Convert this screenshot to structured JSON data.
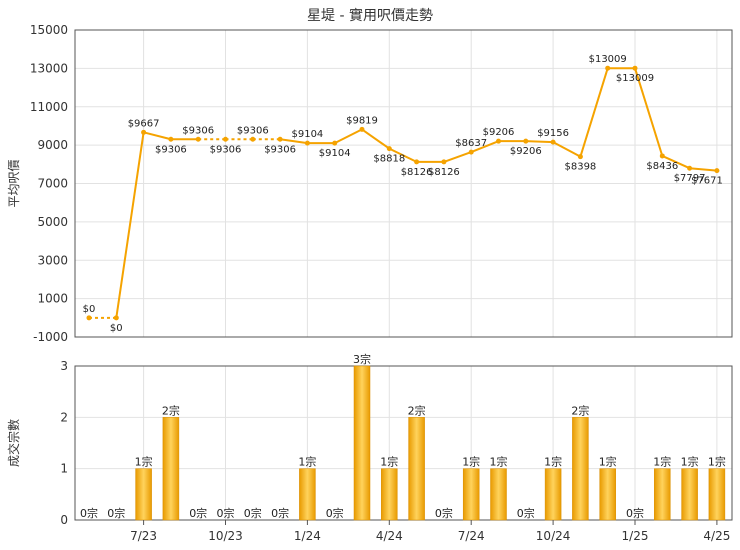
{
  "title": "星堤 - 實用呎價走勢",
  "colors": {
    "line": "#f5a300",
    "bar_dark": "#e89a00",
    "bar_light": "#ffd35c",
    "grid": "#e2e2e2"
  },
  "chart_data": [
    {
      "type": "line",
      "title": "星堤 - 實用呎價走勢",
      "ylabel": "平均呎價",
      "ylim": [
        -1000,
        15000
      ],
      "yticks": [
        -1000,
        1000,
        3000,
        5000,
        7000,
        9000,
        11000,
        13000,
        15000
      ],
      "x_ticks": [
        "7/23",
        "10/23",
        "1/24",
        "4/24",
        "7/24",
        "10/24",
        "1/25",
        "4/25"
      ],
      "grid": true,
      "series": [
        {
          "points": [
            {
              "y": 0,
              "label": "$0",
              "estimated": true
            },
            {
              "y": 0,
              "label": "$0",
              "estimated": true
            },
            {
              "y": 9667,
              "label": "$9667",
              "estimated": false
            },
            {
              "y": 9306,
              "label": "$9306",
              "estimated": false
            },
            {
              "y": 9306,
              "label": "$9306",
              "estimated": true
            },
            {
              "y": 9306,
              "label": "$9306",
              "estimated": true
            },
            {
              "y": 9306,
              "label": "$9306",
              "estimated": true
            },
            {
              "y": 9306,
              "label": "$9306",
              "estimated": true
            },
            {
              "y": 9104,
              "label": "$9104",
              "estimated": false
            },
            {
              "y": 9104,
              "label": "$9104",
              "estimated": true
            },
            {
              "y": 9819,
              "label": "$9819",
              "estimated": false
            },
            {
              "y": 8818,
              "label": "$8818",
              "estimated": false
            },
            {
              "y": 8126,
              "label": "$8126",
              "estimated": false
            },
            {
              "y": 8126,
              "label": "$8126",
              "estimated": true
            },
            {
              "y": 8637,
              "label": "$8637",
              "estimated": false
            },
            {
              "y": 9206,
              "label": "$9206",
              "estimated": false
            },
            {
              "y": 9206,
              "label": "$9206",
              "estimated": true
            },
            {
              "y": 9156,
              "label": "$9156",
              "estimated": false
            },
            {
              "y": 8398,
              "label": "$8398",
              "estimated": false
            },
            {
              "y": 13009,
              "label": "$13009",
              "estimated": false
            },
            {
              "y": 13009,
              "label": "$13009",
              "estimated": true
            },
            {
              "y": 8436,
              "label": "$8436",
              "estimated": false
            },
            {
              "y": 7797,
              "label": "$7797",
              "estimated": false
            },
            {
              "y": 7671,
              "label": "$7671",
              "estimated": false
            }
          ]
        }
      ]
    },
    {
      "type": "bar",
      "ylabel": "成交宗數",
      "ylim": [
        0,
        3
      ],
      "yticks": [
        0,
        1,
        2,
        3
      ],
      "x_ticks": [
        "7/23",
        "10/23",
        "1/24",
        "4/24",
        "7/24",
        "10/24",
        "1/25",
        "4/25"
      ],
      "grid": true,
      "values": [
        0,
        0,
        1,
        2,
        0,
        0,
        0,
        0,
        1,
        0,
        3,
        1,
        2,
        0,
        1,
        1,
        0,
        1,
        2,
        1,
        0,
        1,
        1,
        1
      ],
      "value_labels": [
        "0宗",
        "0宗",
        "1宗",
        "2宗",
        "0宗",
        "0宗",
        "0宗",
        "0宗",
        "1宗",
        "0宗",
        "3宗",
        "1宗",
        "2宗",
        "0宗",
        "1宗",
        "1宗",
        "0宗",
        "1宗",
        "2宗",
        "1宗",
        "0宗",
        "1宗",
        "1宗",
        "1宗"
      ]
    }
  ]
}
